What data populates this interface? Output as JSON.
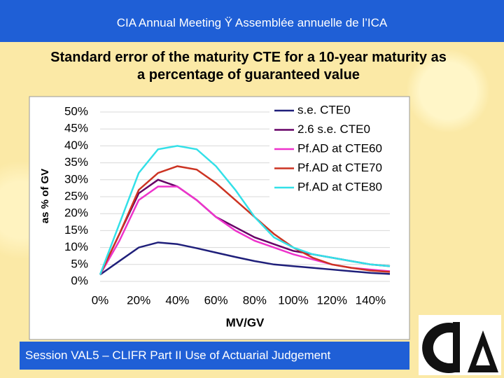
{
  "header": "CIA Annual Meeting Ÿ Assemblée annuelle de l’ICA",
  "footer": "Session VAL5 – CLIFR Part II Use of Actuarial Judgement",
  "chart_data": {
    "type": "line",
    "title": "Standard error of the maturity CTE for a 10-year maturity as a percentage of guaranteed value",
    "x_label": "MV/GV",
    "y_label": "as % of GV",
    "x": [
      0,
      10,
      20,
      30,
      40,
      50,
      60,
      70,
      80,
      90,
      100,
      110,
      120,
      130,
      140,
      150
    ],
    "series": [
      {
        "name": "s.e. CTE0",
        "color": "#1f1f7a",
        "values": [
          2,
          6,
          10,
          11.5,
          11,
          9.8,
          8.5,
          7.2,
          6,
          5,
          4.5,
          4,
          3.5,
          3,
          2.5,
          2.2
        ]
      },
      {
        "name": "2.6 s.e. CTE0",
        "color": "#660066",
        "values": [
          2,
          14,
          26,
          30,
          28,
          24,
          19,
          16,
          13,
          11,
          9,
          8,
          7,
          6,
          5,
          4.5
        ]
      },
      {
        "name": "Pf.AD at CTE60",
        "color": "#ee33cc",
        "values": [
          2,
          12,
          24,
          28,
          28,
          24,
          19,
          15,
          12,
          10,
          8,
          6.5,
          5,
          4,
          3.5,
          3
        ]
      },
      {
        "name": "Pf.AD at CTE70",
        "color": "#cc3322",
        "values": [
          2,
          14,
          27,
          32,
          34,
          33,
          29,
          24,
          19,
          14,
          10,
          7,
          5,
          4,
          3.2,
          2.8
        ]
      },
      {
        "name": "Pf.AD at CTE80",
        "color": "#33e0e8",
        "values": [
          2,
          17,
          32,
          39,
          40,
          39,
          34,
          27,
          19,
          13,
          10,
          8,
          7,
          6,
          5,
          4.5
        ]
      }
    ],
    "xlim": [
      0,
      150
    ],
    "xticks": [
      {
        "value": 0,
        "label": "0%"
      },
      {
        "value": 20,
        "label": "20%"
      },
      {
        "value": 40,
        "label": "40%"
      },
      {
        "value": 60,
        "label": "60%"
      },
      {
        "value": 80,
        "label": "80%"
      },
      {
        "value": 100,
        "label": "100%"
      },
      {
        "value": 120,
        "label": "120%"
      },
      {
        "value": 140,
        "label": "140%"
      }
    ],
    "ylim": [
      0,
      50
    ],
    "yticks": [
      {
        "value": 0,
        "label": "0%"
      },
      {
        "value": 5,
        "label": "5%"
      },
      {
        "value": 10,
        "label": "10%"
      },
      {
        "value": 15,
        "label": "15%"
      },
      {
        "value": 20,
        "label": "20%"
      },
      {
        "value": 25,
        "label": "25%"
      },
      {
        "value": 30,
        "label": "30%"
      },
      {
        "value": 35,
        "label": "35%"
      },
      {
        "value": 40,
        "label": "40%"
      },
      {
        "value": 45,
        "label": "45%"
      },
      {
        "value": 50,
        "label": "50%"
      }
    ],
    "grid": true,
    "legend": "upper right"
  }
}
